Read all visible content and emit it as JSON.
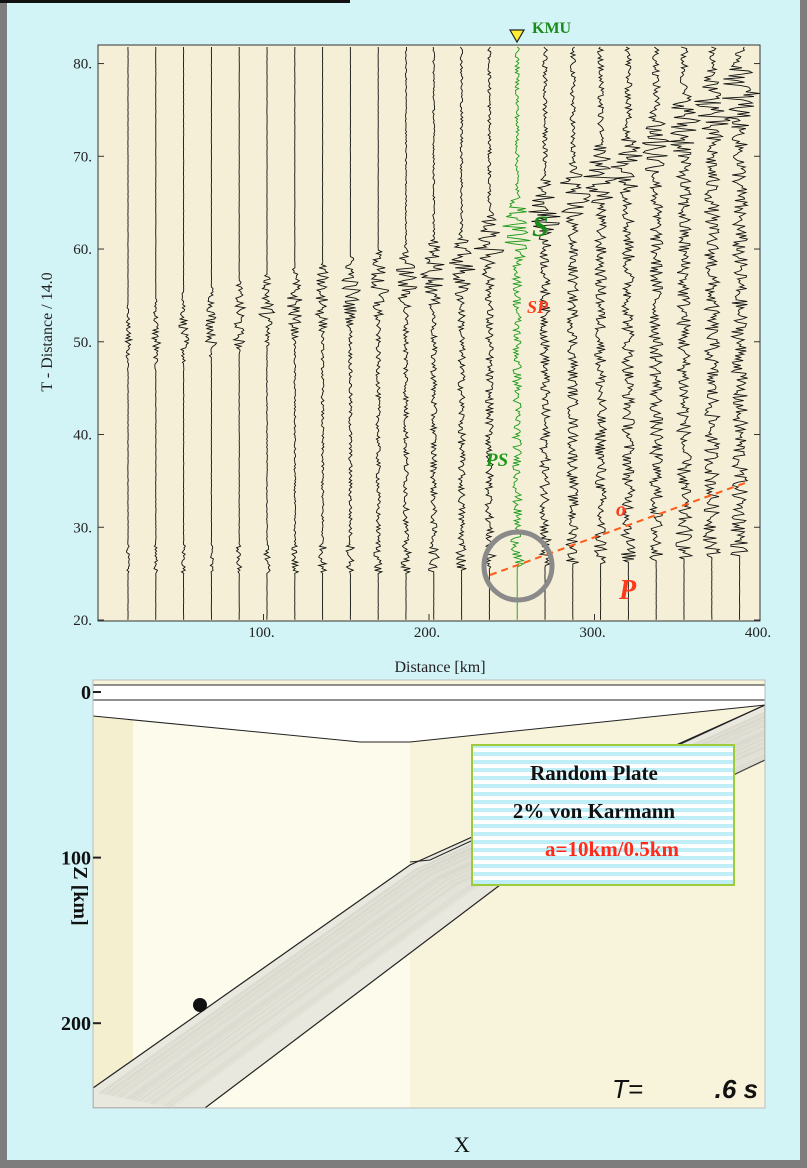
{
  "chart_data": [
    {
      "type": "seismogram",
      "station": "KMU",
      "xlabel": "Distance [km]",
      "ylabel": "T - Distance / 14.0",
      "annotations": [
        "S",
        "SP",
        "PS",
        "o",
        "P"
      ],
      "xlim": [
        0,
        400
      ],
      "ylim": [
        20,
        82
      ],
      "xticks": [
        {
          "value": 100,
          "label": "100."
        },
        {
          "value": 200,
          "label": "200."
        },
        {
          "value": 300,
          "label": "300."
        },
        {
          "value": 400,
          "label": "400."
        }
      ],
      "yticks": [
        {
          "value": 20,
          "label": "20."
        },
        {
          "value": 30,
          "label": "30."
        },
        {
          "value": 40,
          "label": "40."
        },
        {
          "value": 50,
          "label": "50."
        },
        {
          "value": 60,
          "label": "60."
        },
        {
          "value": 70,
          "label": "70."
        },
        {
          "value": 80,
          "label": "80."
        }
      ]
    },
    {
      "type": "model",
      "xlabel": "X",
      "ylabel": "Z [km]",
      "ylim": [
        0,
        250
      ],
      "yticks": [
        0,
        100,
        200
      ],
      "legend": [
        "Random Plate",
        "2% von Karmann",
        "a=10km/0.5km"
      ],
      "time_label": "T=",
      "time_value": ".6 s"
    }
  ]
}
